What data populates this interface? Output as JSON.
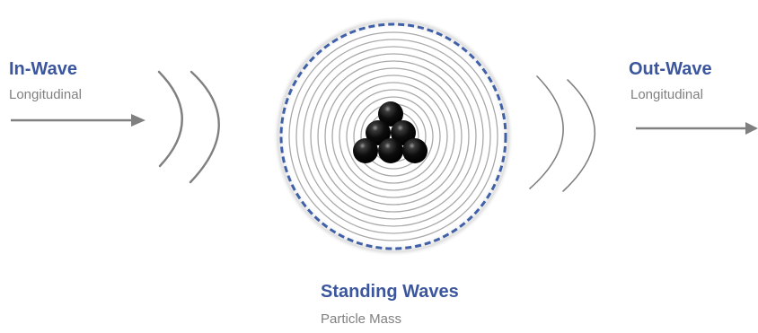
{
  "in_wave": {
    "title": "In-Wave",
    "subtitle": "Longitudinal"
  },
  "out_wave": {
    "title": "Out-Wave",
    "subtitle": "Longitudinal"
  },
  "center": {
    "title": "Standing Waves",
    "subtitle": "Particle Mass"
  },
  "colors": {
    "title_blue": "#3b569c",
    "subtitle_gray": "#808080",
    "arrow_gray": "#808080",
    "wave_gray": "#808080",
    "ring_gray": "#a9a9a9",
    "boundary_blue": "#4060a8",
    "particle_black": "#0a0a0a"
  }
}
